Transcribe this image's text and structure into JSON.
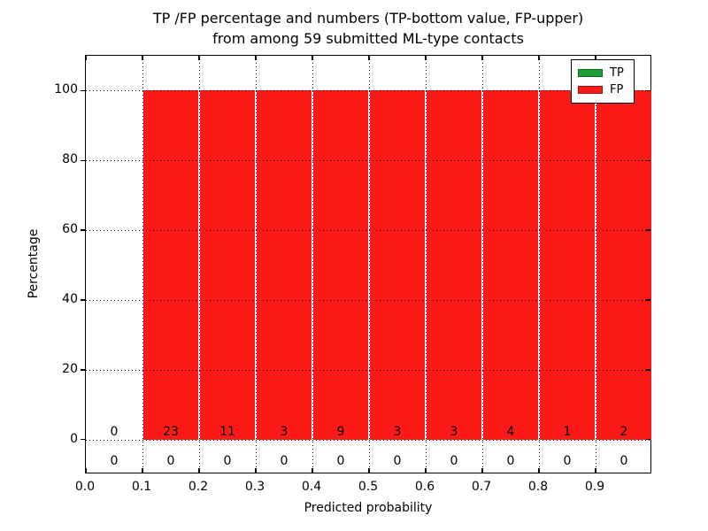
{
  "chart_data": {
    "type": "bar",
    "stacked": true,
    "title": "TP /FP percentage and numbers (TP-bottom value, FP-upper)\nfrom among 59 submitted ML-type contacts",
    "xlabel": "Predicted probability",
    "ylabel": "Percentage",
    "xlim": [
      0.0,
      1.0
    ],
    "ylim": [
      -10,
      110
    ],
    "x_ticks": {
      "values": [
        0.0,
        0.1,
        0.2,
        0.3,
        0.4,
        0.5,
        0.6,
        0.7,
        0.8,
        0.9
      ],
      "labels": [
        "0.0",
        "0.1",
        "0.2",
        "0.3",
        "0.4",
        "0.5",
        "0.6",
        "0.7",
        "0.8",
        "0.9"
      ]
    },
    "y_ticks": {
      "values": [
        0,
        20,
        40,
        60,
        80,
        100
      ],
      "labels": [
        "0",
        "20",
        "40",
        "60",
        "80",
        "100"
      ]
    },
    "grid": {
      "visible": true,
      "style": "dotted",
      "color": "#000000",
      "above_bars": true
    },
    "bin_edges": [
      0.0,
      0.1,
      0.2,
      0.3,
      0.4,
      0.5,
      0.6,
      0.7,
      0.8,
      0.9,
      1.0
    ],
    "series": [
      {
        "name": "TP",
        "color": "#1e9e34",
        "pct": [
          0,
          0,
          0,
          0,
          0,
          0,
          0,
          0,
          0,
          0
        ],
        "counts": [
          0,
          0,
          0,
          0,
          0,
          0,
          0,
          0,
          0,
          0
        ],
        "count_label_row": "below-baseline"
      },
      {
        "name": "FP",
        "color": "#fb1a17",
        "pct": [
          0,
          100,
          100,
          100,
          100,
          100,
          100,
          100,
          100,
          100
        ],
        "counts": [
          0,
          23,
          11,
          3,
          9,
          3,
          3,
          4,
          1,
          2
        ],
        "count_label_row": "above-baseline"
      }
    ],
    "legend": {
      "position": "upper right"
    },
    "background": "#ffffff",
    "text_color": "#000000"
  }
}
